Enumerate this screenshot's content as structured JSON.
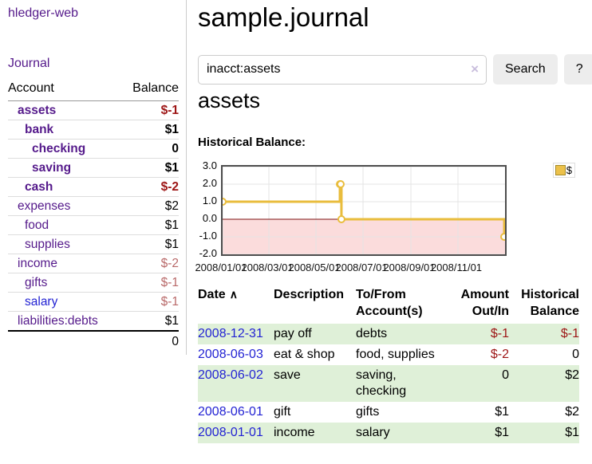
{
  "app": {
    "title": "hledger-web",
    "journal_link": "Journal"
  },
  "colors": {
    "link_purple": "#551a8b",
    "link_blue": "#2323d3",
    "negative_strong": "#9d1515",
    "negative_muted": "#b96a6a",
    "row_stripe_green": "#dff0d8",
    "chart_line_gold": "#e9bd3d"
  },
  "sidebar": {
    "col_account": "Account",
    "col_balance": "Balance",
    "accounts": [
      {
        "name": "assets",
        "balance": "$-1",
        "indent": 0,
        "bold": true,
        "link": "purple",
        "balance_class": "negstrong"
      },
      {
        "name": "bank",
        "balance": "$1",
        "indent": 1,
        "bold": true,
        "link": "purple",
        "balance_class": ""
      },
      {
        "name": "checking",
        "balance": "0",
        "indent": 2,
        "bold": true,
        "link": "purple",
        "balance_class": ""
      },
      {
        "name": "saving",
        "balance": "$1",
        "indent": 2,
        "bold": true,
        "link": "purple",
        "balance_class": ""
      },
      {
        "name": "cash",
        "balance": "$-2",
        "indent": 1,
        "bold": true,
        "link": "purple",
        "balance_class": "negstrong"
      },
      {
        "name": "expenses",
        "balance": "$2",
        "indent": 0,
        "bold": false,
        "link": "purple",
        "balance_class": ""
      },
      {
        "name": "food",
        "balance": "$1",
        "indent": 1,
        "bold": false,
        "link": "purple",
        "balance_class": ""
      },
      {
        "name": "supplies",
        "balance": "$1",
        "indent": 1,
        "bold": false,
        "link": "purple",
        "balance_class": ""
      },
      {
        "name": "income",
        "balance": "$-2",
        "indent": 0,
        "bold": false,
        "link": "purple",
        "balance_class": "negmuted"
      },
      {
        "name": "gifts",
        "balance": "$-1",
        "indent": 1,
        "bold": false,
        "link": "purple",
        "balance_class": "negmuted"
      },
      {
        "name": "salary",
        "balance": "$-1",
        "indent": 1,
        "bold": false,
        "link": "blue",
        "balance_class": "negmuted"
      },
      {
        "name": "liabilities:debts",
        "balance": "$1",
        "indent": 0,
        "bold": false,
        "link": "purple",
        "balance_class": ""
      }
    ],
    "total": "0"
  },
  "main": {
    "title": "sample.journal",
    "search": {
      "value": "inacct:assets",
      "clear_icon": "×",
      "button_label": "Search",
      "help_label": "?"
    },
    "account_heading": "assets",
    "chart_title": "Historical Balance:"
  },
  "chart_data": {
    "type": "line",
    "step": true,
    "title": "Historical Balance:",
    "series": [
      {
        "name": "$",
        "points": [
          [
            "2008-01-01",
            1
          ],
          [
            "2008-06-01",
            2
          ],
          [
            "2008-06-02",
            2
          ],
          [
            "2008-06-03",
            0
          ],
          [
            "2008-12-31",
            -1
          ]
        ]
      }
    ],
    "x_range": [
      "2008-01-01",
      "2009-01-01"
    ],
    "ylim": [
      -2,
      3
    ],
    "y_ticks": [
      3,
      2,
      1,
      0,
      -1,
      -2
    ],
    "x_ticks": [
      "2008/01/01",
      "2008/03/01",
      "2008/05/01",
      "2008/07/01",
      "2008/09/01",
      "2008/11/01"
    ],
    "legend": {
      "label": "$",
      "position": "top-right"
    },
    "grid": true,
    "line_color": "#e9bd3d",
    "marker_fill": "#ffffff",
    "negative_region_color": "#fbdcdc",
    "zero_line_color": "#7d1010"
  },
  "register": {
    "headers": [
      "Date",
      "Description",
      "To/From Account(s)",
      "Amount Out/In",
      "Historical Balance"
    ],
    "sort_asc_icon": "∧",
    "rows": [
      {
        "date": "2008-12-31",
        "description": "pay off",
        "accounts": "debts",
        "amount": "$-1",
        "balance": "$-1",
        "amount_neg": true,
        "balance_neg": true
      },
      {
        "date": "2008-06-03",
        "description": "eat & shop",
        "accounts": "food, supplies",
        "amount": "$-2",
        "balance": "0",
        "amount_neg": true,
        "balance_neg": false
      },
      {
        "date": "2008-06-02",
        "description": "save",
        "accounts": "saving, checking",
        "amount": "0",
        "balance": "$2",
        "amount_neg": false,
        "balance_neg": false
      },
      {
        "date": "2008-06-01",
        "description": "gift",
        "accounts": "gifts",
        "amount": "$1",
        "balance": "$2",
        "amount_neg": false,
        "balance_neg": false
      },
      {
        "date": "2008-01-01",
        "description": "income",
        "accounts": "salary",
        "amount": "$1",
        "balance": "$1",
        "amount_neg": false,
        "balance_neg": false
      }
    ]
  }
}
